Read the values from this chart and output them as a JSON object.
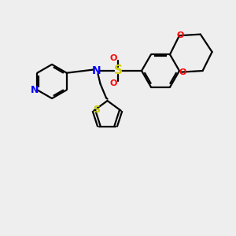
{
  "background_color": "#eeeeee",
  "bond_color": "#000000",
  "N_color": "#0000ff",
  "S_sulfonamide_color": "#cccc00",
  "S_thio_color": "#cccc00",
  "O_color": "#ff0000",
  "figsize": [
    3.0,
    3.0
  ],
  "dpi": 100,
  "xlim": [
    0,
    10
  ],
  "ylim": [
    0,
    10
  ]
}
